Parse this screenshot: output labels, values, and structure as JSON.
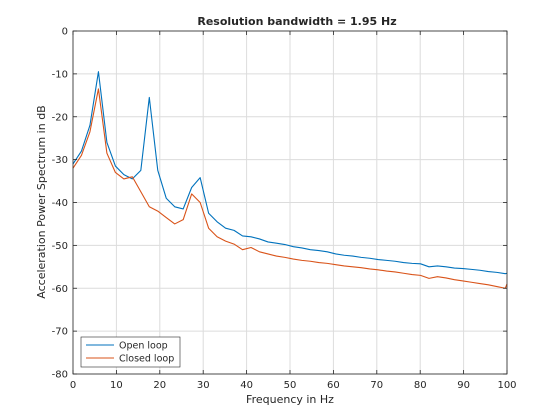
{
  "chart_data": {
    "type": "line",
    "title": "Resolution bandwidth = 1.95 Hz",
    "xlabel": "Frequency in Hz",
    "ylabel": "Acceleration Power Spectrum in dB",
    "xlim": [
      0,
      100
    ],
    "ylim": [
      -80,
      0
    ],
    "xticks": [
      0,
      10,
      20,
      30,
      40,
      50,
      60,
      70,
      80,
      90,
      100
    ],
    "yticks": [
      0,
      -10,
      -20,
      -30,
      -40,
      -50,
      -60,
      -70,
      -80
    ],
    "grid": true,
    "legend_position": "bottom-left",
    "colors": {
      "open": "#0072BD",
      "closed": "#D95319"
    },
    "x": [
      0,
      1.95,
      3.9,
      5.86,
      7.81,
      9.77,
      11.72,
      13.67,
      15.63,
      17.58,
      19.53,
      21.48,
      23.44,
      25.39,
      27.34,
      29.3,
      31.25,
      33.2,
      35.16,
      37.11,
      39.06,
      41.02,
      42.97,
      44.92,
      46.88,
      48.83,
      50.78,
      52.73,
      54.69,
      56.64,
      58.59,
      60.55,
      62.5,
      64.45,
      66.41,
      68.36,
      70.31,
      72.27,
      74.22,
      76.17,
      78.13,
      80.08,
      82.03,
      83.98,
      85.94,
      87.89,
      89.84,
      91.8,
      93.75,
      95.7,
      97.66,
      99.61,
      100
    ],
    "series": [
      {
        "name": "Open loop",
        "color": "#0072BD",
        "values": [
          -31,
          -28,
          -22,
          -9.5,
          -26,
          -31.5,
          -33.5,
          -34.5,
          -32.5,
          -15.5,
          -32.5,
          -39,
          -41,
          -41.5,
          -36.5,
          -34.2,
          -42.5,
          -44.5,
          -46,
          -46.5,
          -47.8,
          -48,
          -48.5,
          -49.2,
          -49.5,
          -49.8,
          -50.3,
          -50.6,
          -51,
          -51.2,
          -51.5,
          -52,
          -52.3,
          -52.5,
          -52.8,
          -53,
          -53.3,
          -53.5,
          -53.7,
          -54,
          -54.2,
          -54.3,
          -55,
          -54.8,
          -55,
          -55.3,
          -55.4,
          -55.6,
          -55.8,
          -56.1,
          -56.3,
          -56.6,
          -56.5
        ]
      },
      {
        "name": "Closed loop",
        "color": "#D95319",
        "values": [
          -32,
          -29,
          -23.5,
          -13.5,
          -28.5,
          -33,
          -34.5,
          -34,
          -37.5,
          -41,
          -42,
          -43.5,
          -45,
          -44,
          -38,
          -40,
          -46,
          -48,
          -49,
          -49.7,
          -51,
          -50.5,
          -51.5,
          -52,
          -52.5,
          -52.8,
          -53.2,
          -53.5,
          -53.7,
          -54,
          -54.2,
          -54.5,
          -54.8,
          -55,
          -55.2,
          -55.5,
          -55.7,
          -56,
          -56.2,
          -56.5,
          -56.8,
          -57,
          -57.7,
          -57.3,
          -57.6,
          -58,
          -58.3,
          -58.6,
          -58.9,
          -59.2,
          -59.6,
          -60,
          -59
        ]
      }
    ]
  }
}
